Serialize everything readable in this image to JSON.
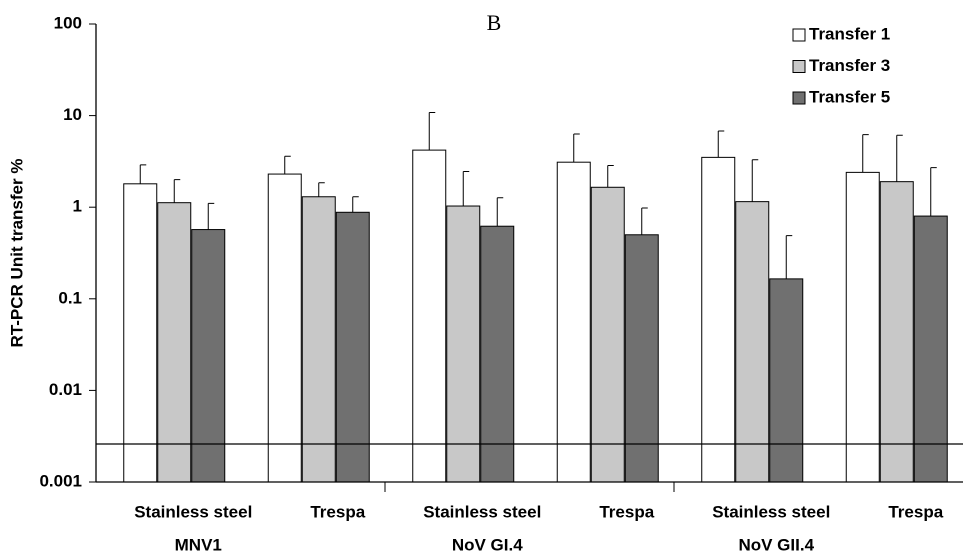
{
  "chart_data": {
    "type": "bar",
    "title": "B",
    "ylabel": "RT-PCR Unit transfer %",
    "categories": [
      "Stainless steel",
      "Trespa",
      "Stainless steel",
      "Trespa",
      "Stainless steel",
      "Trespa"
    ],
    "groups": [
      "MNV1",
      "NoV GI.4",
      "NoV GII.4"
    ],
    "series": [
      {
        "name": "Transfer 1",
        "color": "#ffffff",
        "values": [
          1.8,
          2.3,
          4.2,
          3.1,
          3.5,
          2.4
        ],
        "errors": [
          1.1,
          1.3,
          6.6,
          3.2,
          3.3,
          3.8
        ]
      },
      {
        "name": "Transfer 3",
        "color": "#c8c8c8",
        "values": [
          1.12,
          1.3,
          1.03,
          1.65,
          1.15,
          1.9
        ],
        "errors": [
          0.88,
          0.55,
          1.42,
          1.2,
          2.15,
          4.2
        ]
      },
      {
        "name": "Transfer 5",
        "color": "#707070",
        "values": [
          0.57,
          0.88,
          0.62,
          0.5,
          0.165,
          0.8
        ],
        "errors": [
          0.53,
          0.42,
          0.65,
          0.48,
          0.325,
          1.9
        ]
      }
    ],
    "reference_line": 0.0026,
    "ylim": [
      0.001,
      100
    ],
    "yticks": [
      0.001,
      0.01,
      0.1,
      1,
      10,
      100
    ],
    "log_scale": true,
    "legend": "upper right"
  }
}
